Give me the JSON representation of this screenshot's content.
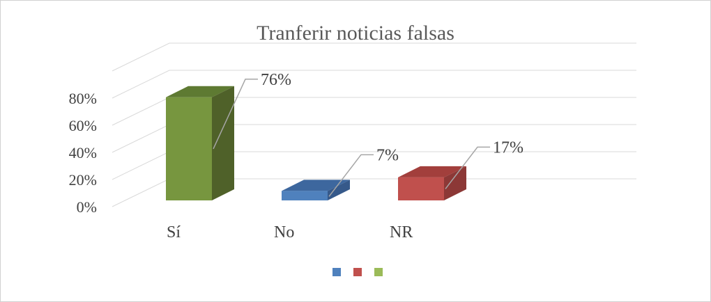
{
  "chart_data": {
    "type": "bar",
    "title": "Tranferir noticias falsas",
    "categories": [
      "Sí",
      "No",
      "NR"
    ],
    "values": [
      76,
      7,
      17
    ],
    "data_labels": [
      "76%",
      "7%",
      "17%"
    ],
    "y_ticks": [
      "0%",
      "20%",
      "40%",
      "60%",
      "80%"
    ],
    "ylim": [
      0,
      100
    ],
    "bar_colors": [
      "#77963F",
      "#4F81BD",
      "#C0504D"
    ],
    "bar_side_colors": [
      "#4F6129",
      "#36598A",
      "#8C3836"
    ],
    "bar_top_colors": [
      "#5E7A32",
      "#3D679E",
      "#A23F3C"
    ],
    "legend_colors": [
      "#4F81BD",
      "#C0504D",
      "#9BBB59"
    ],
    "grid": true,
    "legend_position": "bottom"
  }
}
